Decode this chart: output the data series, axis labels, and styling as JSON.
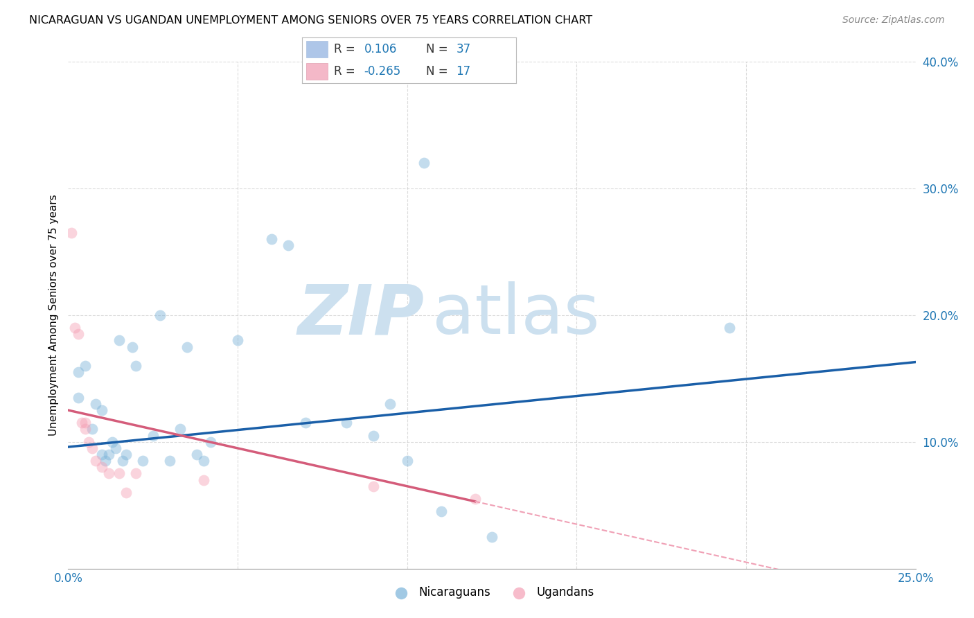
{
  "title": "NICARAGUAN VS UGANDAN UNEMPLOYMENT AMONG SENIORS OVER 75 YEARS CORRELATION CHART",
  "source": "Source: ZipAtlas.com",
  "ylabel": "Unemployment Among Seniors over 75 years",
  "xlim": [
    0.0,
    0.25
  ],
  "ylim": [
    0.0,
    0.4
  ],
  "xtick_positions": [
    0.0,
    0.05,
    0.1,
    0.15,
    0.2,
    0.25
  ],
  "xticklabels": [
    "0.0%",
    "",
    "",
    "",
    "",
    "25.0%"
  ],
  "ytick_positions": [
    0.1,
    0.2,
    0.3,
    0.4
  ],
  "ytick_labels": [
    "10.0%",
    "20.0%",
    "30.0%",
    "40.0%"
  ],
  "nicaraguan_points": [
    [
      0.003,
      0.155
    ],
    [
      0.003,
      0.135
    ],
    [
      0.005,
      0.16
    ],
    [
      0.007,
      0.11
    ],
    [
      0.008,
      0.13
    ],
    [
      0.01,
      0.125
    ],
    [
      0.01,
      0.09
    ],
    [
      0.011,
      0.085
    ],
    [
      0.012,
      0.09
    ],
    [
      0.013,
      0.1
    ],
    [
      0.014,
      0.095
    ],
    [
      0.015,
      0.18
    ],
    [
      0.016,
      0.085
    ],
    [
      0.017,
      0.09
    ],
    [
      0.019,
      0.175
    ],
    [
      0.02,
      0.16
    ],
    [
      0.022,
      0.085
    ],
    [
      0.025,
      0.105
    ],
    [
      0.027,
      0.2
    ],
    [
      0.03,
      0.085
    ],
    [
      0.033,
      0.11
    ],
    [
      0.035,
      0.175
    ],
    [
      0.038,
      0.09
    ],
    [
      0.04,
      0.085
    ],
    [
      0.042,
      0.1
    ],
    [
      0.05,
      0.18
    ],
    [
      0.06,
      0.26
    ],
    [
      0.065,
      0.255
    ],
    [
      0.07,
      0.115
    ],
    [
      0.082,
      0.115
    ],
    [
      0.09,
      0.105
    ],
    [
      0.095,
      0.13
    ],
    [
      0.1,
      0.085
    ],
    [
      0.105,
      0.32
    ],
    [
      0.11,
      0.045
    ],
    [
      0.125,
      0.025
    ],
    [
      0.195,
      0.19
    ]
  ],
  "ugandan_points": [
    [
      0.001,
      0.265
    ],
    [
      0.002,
      0.19
    ],
    [
      0.003,
      0.185
    ],
    [
      0.004,
      0.115
    ],
    [
      0.005,
      0.115
    ],
    [
      0.005,
      0.11
    ],
    [
      0.006,
      0.1
    ],
    [
      0.007,
      0.095
    ],
    [
      0.008,
      0.085
    ],
    [
      0.01,
      0.08
    ],
    [
      0.012,
      0.075
    ],
    [
      0.015,
      0.075
    ],
    [
      0.017,
      0.06
    ],
    [
      0.02,
      0.075
    ],
    [
      0.04,
      0.07
    ],
    [
      0.09,
      0.065
    ],
    [
      0.12,
      0.055
    ]
  ],
  "nic_line": [
    0.0,
    0.096,
    0.25,
    0.163
  ],
  "uga_line_solid": [
    0.0,
    0.125,
    0.12,
    0.053
  ],
  "uga_line_dash": [
    0.12,
    0.053,
    0.25,
    -0.025
  ],
  "nic_line_color": "#1a5fa8",
  "uga_line_color": "#d45c7a",
  "uga_dash_color": "#f0a0b5",
  "watermark_zip": "ZIP",
  "watermark_atlas": "atlas",
  "watermark_color": "#cce0ef",
  "dot_size": 130,
  "dot_alpha": 0.45,
  "nic_dot_color": "#7ab3d9",
  "uga_dot_color": "#f4a0b5",
  "legend_r1_color": "0.106",
  "legend_r2_color": "-0.265",
  "legend_n1": "37",
  "legend_n2": "17",
  "legend_box_color1": "#aec6e8",
  "legend_box_color2": "#f4b8c8",
  "grid_color": "#cccccc",
  "grid_style": "--",
  "grid_alpha": 0.7
}
